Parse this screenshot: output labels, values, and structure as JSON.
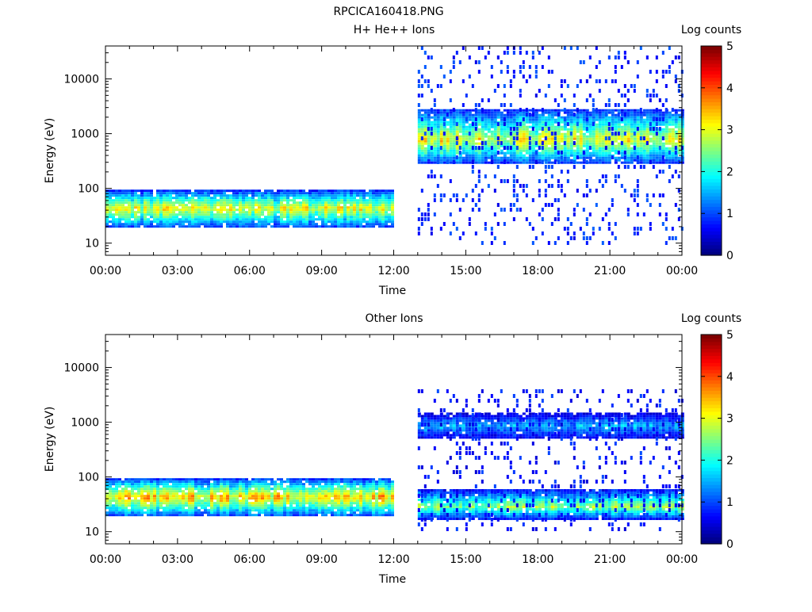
{
  "page": {
    "title": "RPCICA160418.PNG"
  },
  "chart_data": [
    {
      "type": "heatmap",
      "title": "H+ He++ Ions",
      "xlabel": "Time",
      "ylabel": "Energy (eV)",
      "colorbar_label": "Log counts",
      "y_scale": "log",
      "ylim": [
        6,
        40000
      ],
      "xlim_hours": [
        0,
        24
      ],
      "x_ticks": [
        "00:00",
        "03:00",
        "06:00",
        "09:00",
        "12:00",
        "15:00",
        "18:00",
        "21:00",
        "00:00"
      ],
      "y_ticks": [
        "10",
        "100",
        "1000",
        "10000"
      ],
      "colorbar_ticks": [
        "0",
        "1",
        "2",
        "3",
        "4",
        "5"
      ],
      "colorbar_range": [
        0,
        5
      ],
      "data_gap_hours": [
        12.0,
        13.0
      ],
      "bands": [
        {
          "t_start": 0.0,
          "t_end": 12.0,
          "e_low": 20,
          "e_high": 95,
          "e_peak": 45,
          "peak_log_counts": 3.2
        },
        {
          "t_start": 13.0,
          "t_end": 24.0,
          "e_low": 300,
          "e_high": 2800,
          "e_peak": 800,
          "peak_log_counts": 3.3
        }
      ],
      "noise": {
        "t_start": 13.0,
        "t_end": 24.0,
        "e_low": 10,
        "e_high": 40000,
        "log_counts": 0.8
      }
    },
    {
      "type": "heatmap",
      "title": "Other Ions",
      "xlabel": "Time",
      "ylabel": "Energy (eV)",
      "colorbar_label": "Log counts",
      "y_scale": "log",
      "ylim": [
        6,
        40000
      ],
      "xlim_hours": [
        0,
        24
      ],
      "x_ticks": [
        "00:00",
        "03:00",
        "06:00",
        "09:00",
        "12:00",
        "15:00",
        "18:00",
        "21:00",
        "00:00"
      ],
      "y_ticks": [
        "10",
        "100",
        "1000",
        "10000"
      ],
      "colorbar_ticks": [
        "0",
        "1",
        "2",
        "3",
        "4",
        "5"
      ],
      "colorbar_range": [
        0,
        5
      ],
      "data_gap_hours": [
        12.0,
        13.0
      ],
      "bands": [
        {
          "t_start": 0.0,
          "t_end": 12.0,
          "e_low": 20,
          "e_high": 95,
          "e_peak": 45,
          "peak_log_counts": 3.6
        },
        {
          "t_start": 13.0,
          "t_end": 24.0,
          "e_low": 500,
          "e_high": 1500,
          "e_peak": 900,
          "peak_log_counts": 1.6
        },
        {
          "t_start": 13.0,
          "t_end": 24.0,
          "e_low": 18,
          "e_high": 60,
          "e_peak": 30,
          "peak_log_counts": 2.8
        }
      ],
      "noise": {
        "t_start": 13.0,
        "t_end": 24.0,
        "e_low": 10,
        "e_high": 4000,
        "log_counts": 0.7
      }
    }
  ]
}
